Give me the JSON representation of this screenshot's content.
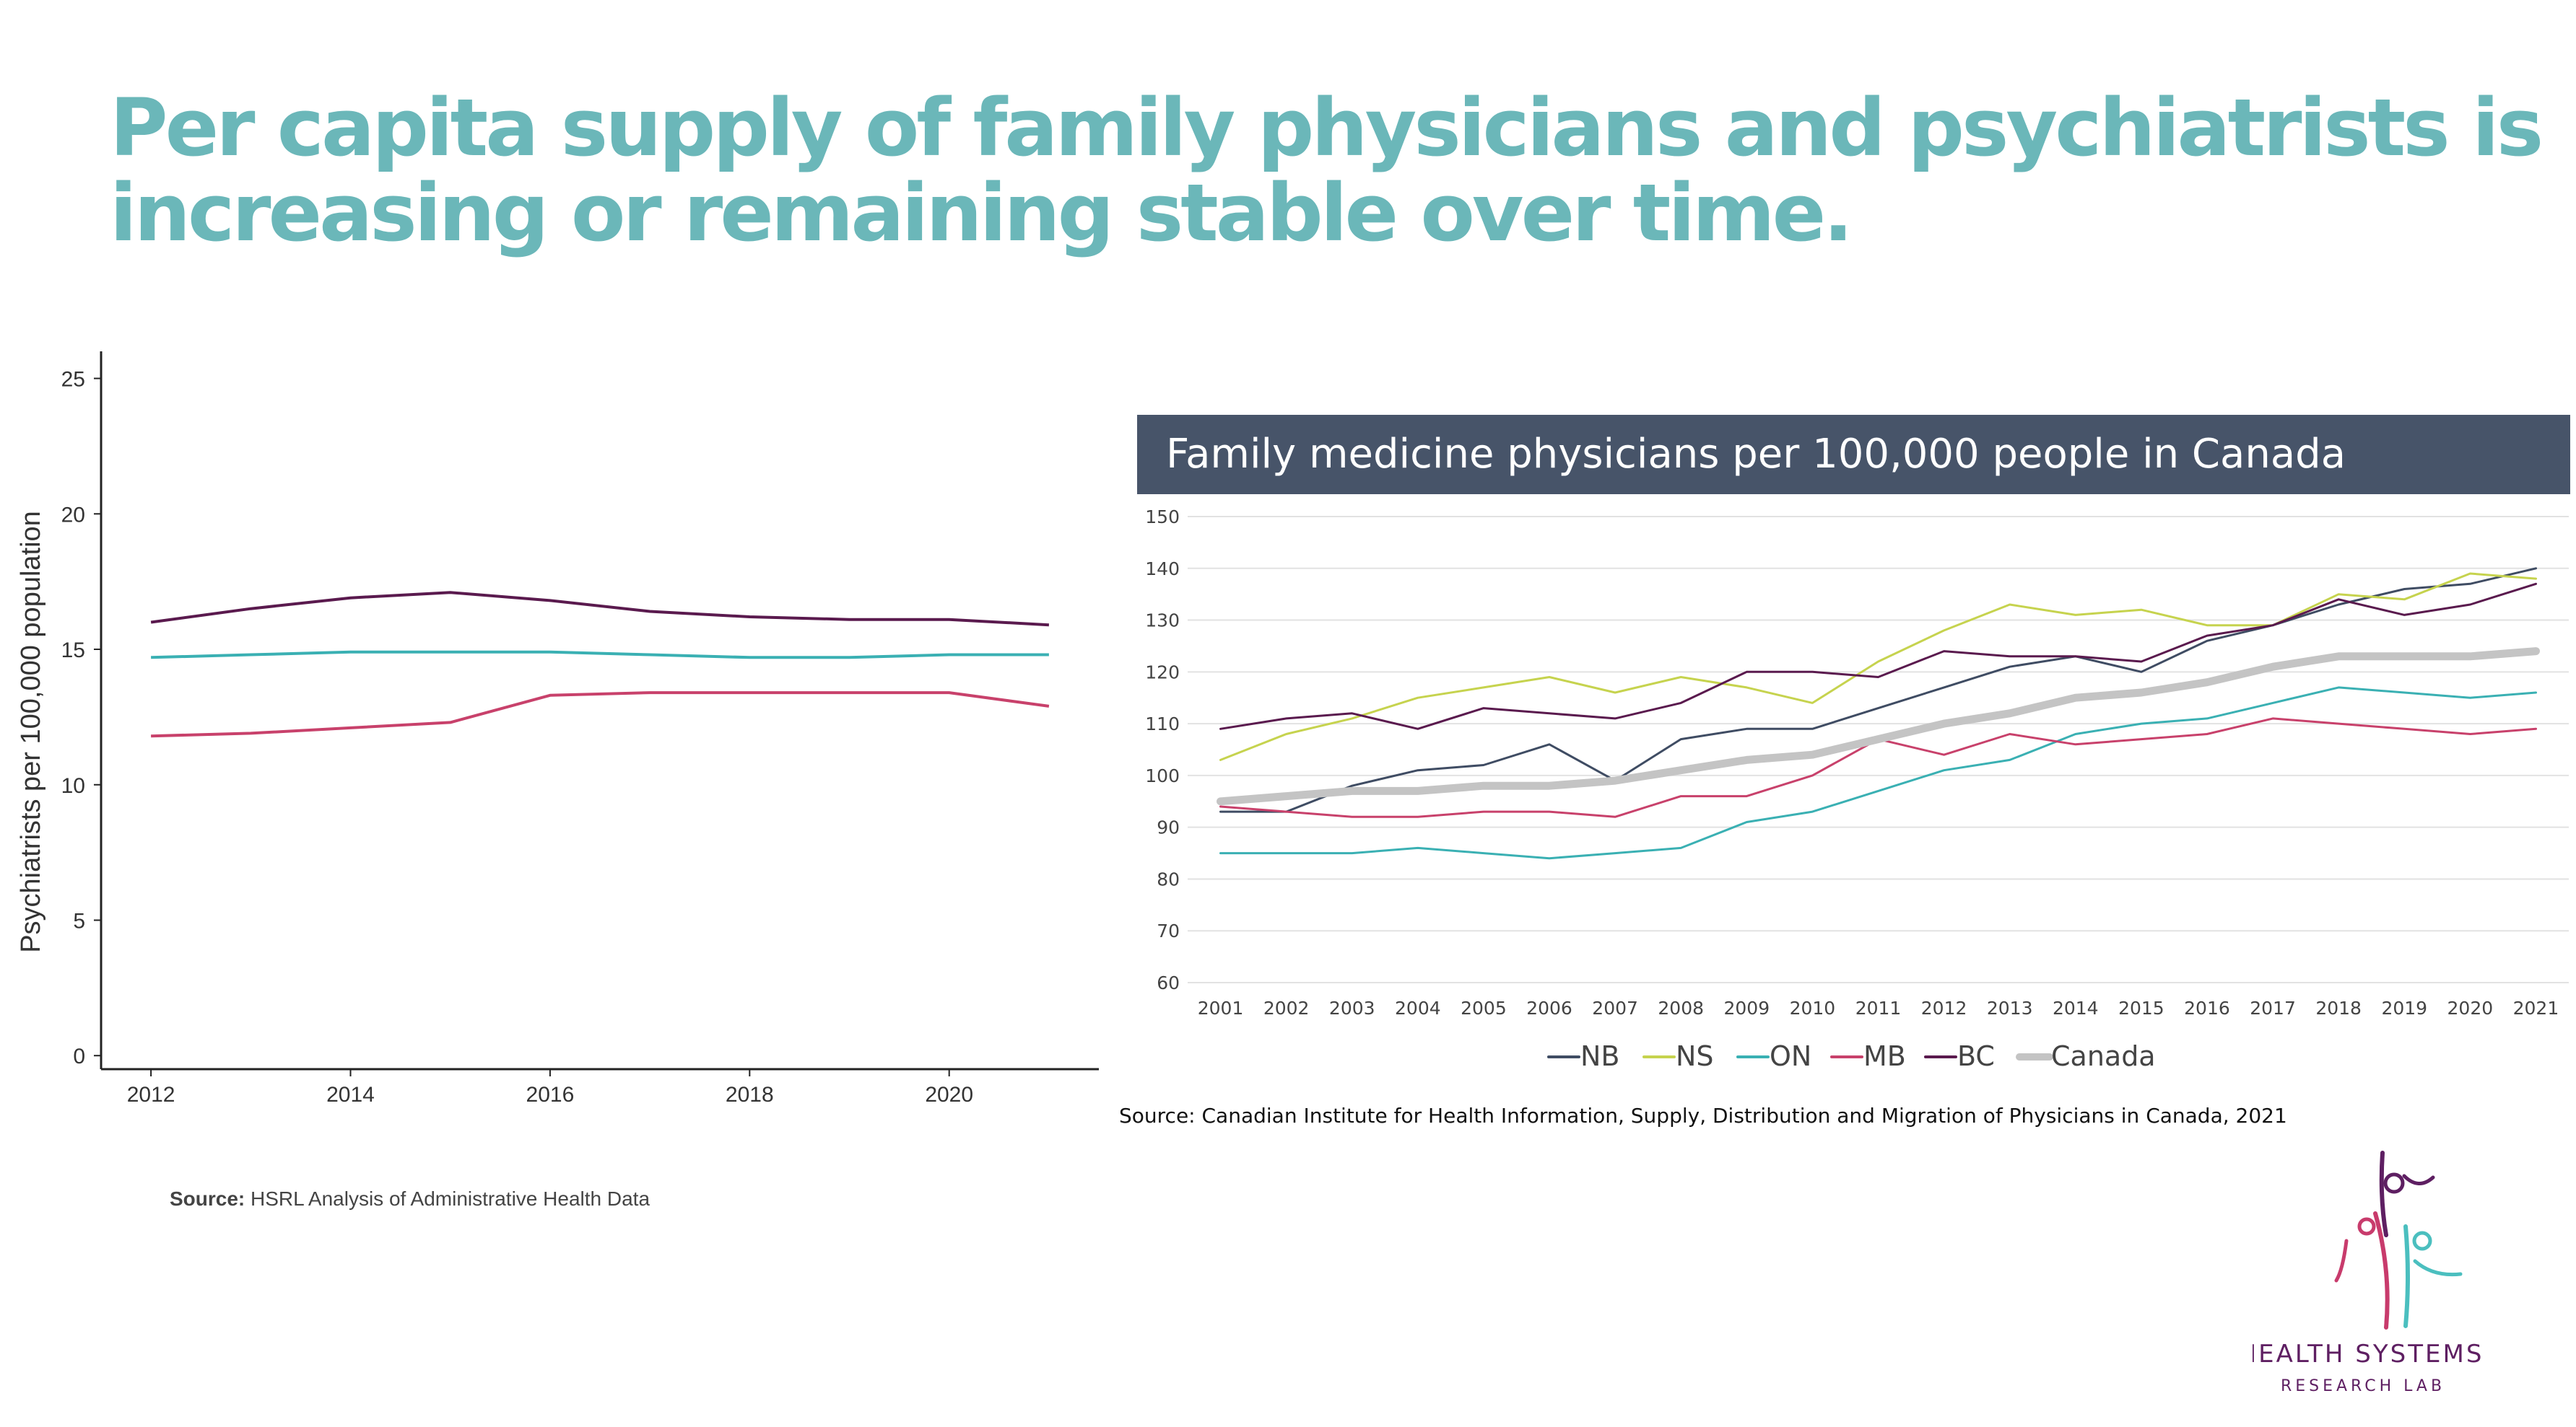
{
  "title_lines": [
    "Per capita supply of family physicians and psychiatrists is",
    "increasing or remaining stable over time."
  ],
  "left_source_label": "Source:",
  "left_source_text": " HSRL Analysis of Administrative Health Data",
  "right_title": "Family medicine physicians per 100,000 people in Canada",
  "right_source": "Source: Canadian Institute for Health Information, Supply, Distribution and Migration of Physicians in Canada, 2021",
  "logo": {
    "line1": "HEALTH SYSTEMS",
    "line2": "RESEARCH LAB",
    "colors": [
      "#5e1f62",
      "#c83b6c",
      "#4bbfbf"
    ]
  },
  "chart_data": [
    {
      "type": "line",
      "title": "",
      "xlabel": "",
      "ylabel": "Psychiatrists per 100,000 population",
      "x": [
        2012,
        2013,
        2014,
        2015,
        2016,
        2017,
        2018,
        2019,
        2020,
        2021
      ],
      "xticks": [
        2012,
        2014,
        2016,
        2018,
        2020
      ],
      "yticks": [
        0,
        5,
        10,
        15,
        20,
        25
      ],
      "ylim": [
        -0.5,
        26
      ],
      "xlim": [
        2011.5,
        2021.5
      ],
      "grid": false,
      "series": [
        {
          "color": "#5a1a4e",
          "values": [
            16.0,
            16.5,
            16.9,
            17.1,
            16.8,
            16.4,
            16.2,
            16.1,
            16.1,
            15.9
          ]
        },
        {
          "color": "#3ab0b3",
          "values": [
            14.7,
            14.8,
            14.9,
            14.9,
            14.9,
            14.8,
            14.7,
            14.7,
            14.8,
            14.8
          ]
        },
        {
          "color": "#c8416b",
          "values": [
            11.8,
            11.9,
            12.1,
            12.3,
            13.3,
            13.4,
            13.4,
            13.4,
            13.4,
            12.9
          ]
        }
      ]
    },
    {
      "type": "line",
      "title": "Family medicine physicians per 100,000 people in Canada",
      "xlabel": "",
      "ylabel": "",
      "x": [
        2001,
        2002,
        2003,
        2004,
        2005,
        2006,
        2007,
        2008,
        2009,
        2010,
        2011,
        2012,
        2013,
        2014,
        2015,
        2016,
        2017,
        2018,
        2019,
        2020,
        2021
      ],
      "yticks": [
        60,
        70,
        80,
        90,
        100,
        110,
        120,
        130,
        140,
        150
      ],
      "ylim": [
        60,
        150
      ],
      "grid": true,
      "legend_position": "bottom",
      "series": [
        {
          "name": "NB",
          "color": "#3f4c63",
          "width": 3,
          "values": [
            93,
            93,
            98,
            101,
            102,
            106,
            99,
            107,
            109,
            109,
            113,
            117,
            121,
            123,
            120,
            126,
            129,
            133,
            136,
            137,
            140
          ]
        },
        {
          "name": "NS",
          "color": "#c6d34e",
          "width": 3,
          "values": [
            103,
            108,
            111,
            115,
            117,
            119,
            116,
            119,
            117,
            114,
            122,
            128,
            133,
            131,
            132,
            129,
            129,
            135,
            134,
            139,
            138
          ]
        },
        {
          "name": "ON",
          "color": "#3ab0b3",
          "width": 3,
          "values": [
            85,
            85,
            85,
            86,
            85,
            84,
            85,
            86,
            91,
            93,
            97,
            101,
            103,
            108,
            110,
            111,
            114,
            117,
            116,
            115,
            116
          ]
        },
        {
          "name": "MB",
          "color": "#c8416b",
          "width": 3,
          "values": [
            94,
            93,
            92,
            92,
            93,
            93,
            92,
            96,
            96,
            100,
            107,
            104,
            108,
            106,
            107,
            108,
            111,
            110,
            109,
            108,
            109
          ]
        },
        {
          "name": "BC",
          "color": "#5a1a4e",
          "width": 3,
          "values": [
            109,
            111,
            112,
            109,
            113,
            112,
            111,
            114,
            120,
            120,
            119,
            124,
            123,
            123,
            122,
            127,
            129,
            134,
            131,
            133,
            137
          ]
        },
        {
          "name": "Canada",
          "color": "#c4c4c4",
          "width": 11,
          "values": [
            95,
            96,
            97,
            97,
            98,
            98,
            99,
            101,
            103,
            104,
            107,
            110,
            112,
            115,
            116,
            118,
            121,
            123,
            123,
            123,
            124
          ]
        }
      ]
    }
  ]
}
